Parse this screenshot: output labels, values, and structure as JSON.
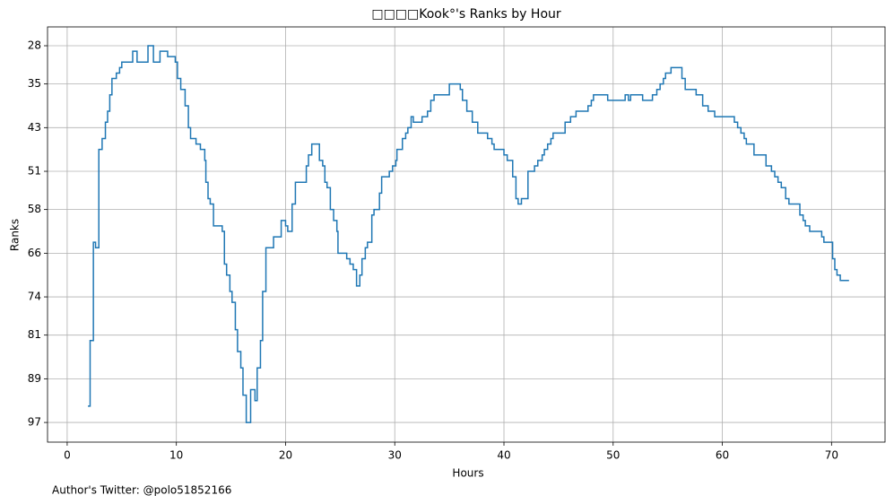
{
  "chart_data": {
    "type": "step",
    "title": "□□□□Kook°'s Ranks by Hour",
    "xlabel": "Hours",
    "ylabel": "Ranks",
    "footnote": "Author's Twitter: @polo51852166",
    "color": "#1f77b4",
    "grid": true,
    "y_inverted": true,
    "xlim": [
      -1.8,
      74.9
    ],
    "xticks": [
      0,
      10,
      20,
      30,
      40,
      50,
      60,
      70
    ],
    "ylim": [
      100.6,
      24.55
    ],
    "yticks": [
      28,
      35,
      43,
      51,
      58,
      66,
      74,
      81,
      89,
      97
    ],
    "x": [
      1.9,
      2.1,
      2.4,
      2.6,
      2.9,
      3.2,
      3.5,
      3.7,
      3.9,
      4.1,
      4.5,
      4.8,
      5.0,
      6.0,
      6.4,
      7.4,
      7.9,
      8.5,
      9.2,
      9.9,
      10.1,
      10.4,
      10.8,
      11.1,
      11.3,
      11.8,
      12.2,
      12.6,
      12.7,
      12.9,
      13.1,
      13.4,
      14.2,
      14.4,
      14.6,
      14.9,
      15.1,
      15.4,
      15.6,
      15.9,
      16.1,
      16.4,
      16.8,
      17.2,
      17.4,
      17.7,
      17.9,
      18.2,
      18.9,
      19.6,
      20.0,
      20.2,
      20.6,
      20.9,
      21.9,
      22.1,
      22.4,
      23.1,
      23.4,
      23.6,
      23.8,
      24.1,
      24.4,
      24.7,
      24.8,
      25.6,
      25.9,
      26.2,
      26.5,
      26.8,
      27.0,
      27.3,
      27.5,
      27.9,
      28.1,
      28.6,
      28.8,
      29.5,
      29.8,
      30.1,
      30.2,
      30.7,
      31.0,
      31.2,
      31.5,
      31.7,
      32.5,
      33.0,
      33.3,
      33.6,
      35.0,
      36.0,
      36.2,
      36.6,
      37.1,
      37.6,
      38.5,
      38.9,
      39.1,
      40.0,
      40.3,
      40.8,
      41.1,
      41.3,
      41.6,
      42.2,
      42.8,
      43.1,
      43.5,
      43.7,
      44.0,
      44.3,
      44.5,
      45.6,
      46.1,
      46.6,
      47.7,
      48.0,
      48.2,
      49.5,
      51.1,
      51.4,
      51.6,
      52.7,
      53.6,
      54.0,
      54.3,
      54.6,
      54.8,
      55.3,
      56.3,
      56.6,
      57.6,
      58.2,
      58.7,
      59.3,
      61.1,
      61.4,
      61.7,
      62.0,
      62.2,
      62.9,
      64.0,
      64.5,
      64.8,
      65.1,
      65.4,
      65.8,
      66.1,
      67.1,
      67.4,
      67.6,
      68.0,
      69.1,
      69.3,
      70.1,
      70.3,
      70.5,
      70.8,
      71.6
    ],
    "values": [
      94,
      82,
      64,
      65,
      47,
      45,
      42,
      40,
      37,
      34,
      33,
      32,
      31,
      29,
      31,
      28,
      31,
      29,
      30,
      31,
      34,
      36,
      39,
      43,
      45,
      46,
      47,
      49,
      53,
      56,
      57,
      61,
      62,
      68,
      70,
      73,
      75,
      80,
      84,
      87,
      92,
      97,
      91,
      93,
      87,
      82,
      73,
      65,
      63,
      60,
      61,
      62,
      57,
      53,
      50,
      48,
      46,
      49,
      50,
      53,
      54,
      58,
      60,
      62,
      66,
      67,
      68,
      69,
      72,
      70,
      67,
      65,
      64,
      59,
      58,
      55,
      52,
      51,
      50,
      49,
      47,
      45,
      44,
      43,
      41,
      42,
      41,
      40,
      38,
      37,
      35,
      36,
      38,
      40,
      42,
      44,
      45,
      46,
      47,
      48,
      49,
      52,
      56,
      57,
      56,
      51,
      50,
      49,
      48,
      47,
      46,
      45,
      44,
      42,
      41,
      40,
      39,
      38,
      37,
      38,
      37,
      38,
      37,
      38,
      37,
      36,
      35,
      34,
      33,
      32,
      34,
      36,
      37,
      39,
      40,
      41,
      42,
      43,
      44,
      45,
      46,
      48,
      50,
      51,
      52,
      53,
      54,
      56,
      57,
      59,
      60,
      61,
      62,
      63,
      64,
      67,
      69,
      70,
      71,
      71
    ]
  }
}
